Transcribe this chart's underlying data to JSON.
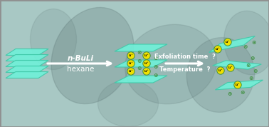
{
  "bg_color": "#a8c8c4",
  "sheet_color": "#70f0d8",
  "sheet_edge_color": "#40c8a8",
  "li_color": "#f0e000",
  "li_border": "#409040",
  "minus_color": "#409040",
  "label1": "n-BuLi",
  "label2": "hexane",
  "label3": "Exfoliation time  ?",
  "label4": "Temperature  ?",
  "li_label": "Li⁺",
  "minus_label": "⊛",
  "tem_blobs": [
    [
      130,
      78,
      110,
      140,
      25,
      0.22
    ],
    [
      240,
      90,
      130,
      110,
      -15,
      0.16
    ],
    [
      310,
      105,
      95,
      105,
      10,
      0.18
    ],
    [
      75,
      55,
      65,
      85,
      0,
      0.13
    ],
    [
      180,
      145,
      85,
      65,
      0,
      0.12
    ],
    [
      350,
      60,
      70,
      90,
      -10,
      0.14
    ]
  ]
}
